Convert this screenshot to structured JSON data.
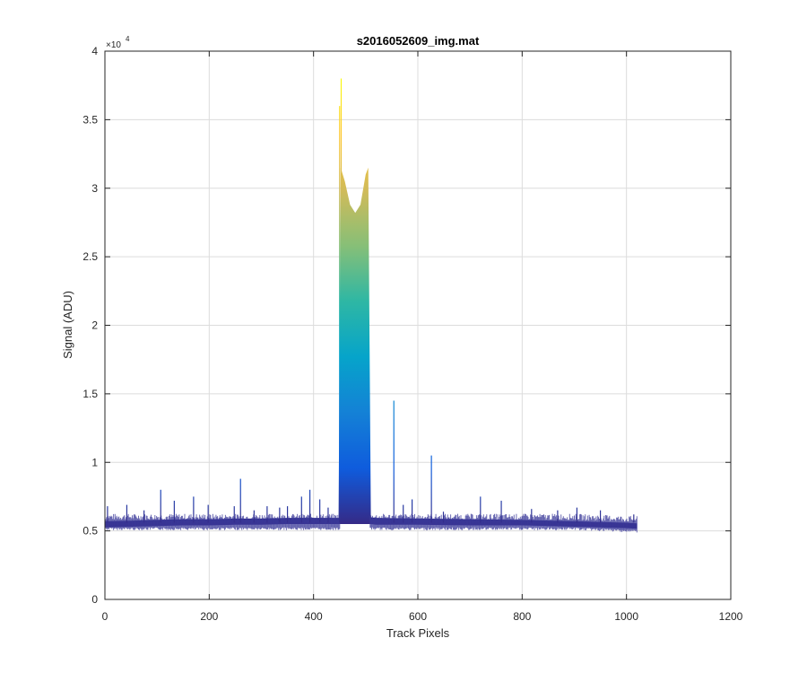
{
  "chart_data": {
    "type": "area",
    "title": "s2016052609_img.mat",
    "xlabel": "Track Pixels",
    "ylabel": "Signal (ADU)",
    "xlim": [
      0,
      1200
    ],
    "ylim": [
      0,
      40000
    ],
    "x_ticks": [
      0,
      200,
      400,
      600,
      800,
      1000,
      1200
    ],
    "x_tick_labels": [
      "0",
      "200",
      "400",
      "600",
      "800",
      "1000",
      "1200"
    ],
    "y_ticks": [
      0,
      5000,
      10000,
      15000,
      20000,
      25000,
      30000,
      35000,
      40000
    ],
    "y_tick_labels": [
      "0",
      "0.5",
      "1",
      "1.5",
      "2",
      "2.5",
      "3",
      "3.5",
      "4"
    ],
    "y_exponent_base": "×10",
    "y_exponent_power": "4",
    "grid": true,
    "colormap": "parula",
    "colormap_stops": [
      "#352a87",
      "#0f5cdd",
      "#1481d6",
      "#06a4ca",
      "#2eb7a4",
      "#87bf77",
      "#d1bb59",
      "#fec832",
      "#f9fb0e"
    ],
    "series": [
      {
        "x": [
          0,
          50,
          100,
          150,
          200,
          250,
          300,
          350,
          400,
          440,
          448,
          452,
          460,
          470,
          480,
          490,
          500,
          505,
          510,
          520,
          600,
          700,
          800,
          900,
          1000,
          1020
        ],
        "y_min": [
          5250,
          5300,
          5350,
          5400,
          5400,
          5450,
          5450,
          5500,
          5500,
          5500,
          5500,
          5500,
          5500,
          5500,
          5500,
          5500,
          5500,
          5500,
          5500,
          5450,
          5450,
          5400,
          5400,
          5300,
          5200,
          5150
        ],
        "y_max": [
          5700,
          5750,
          5800,
          5850,
          5850,
          5900,
          5900,
          5950,
          5950,
          5950,
          5950,
          31500,
          30500,
          28800,
          28200,
          28800,
          31000,
          31500,
          6000,
          5950,
          5900,
          5850,
          5800,
          5700,
          5600,
          5550
        ]
      }
    ],
    "spikes": [
      {
        "x": 5,
        "y": 6800
      },
      {
        "x": 42,
        "y": 6900
      },
      {
        "x": 75,
        "y": 6500
      },
      {
        "x": 107,
        "y": 8000
      },
      {
        "x": 133,
        "y": 7200
      },
      {
        "x": 170,
        "y": 7500
      },
      {
        "x": 198,
        "y": 6900
      },
      {
        "x": 248,
        "y": 6800
      },
      {
        "x": 260,
        "y": 8800
      },
      {
        "x": 286,
        "y": 6500
      },
      {
        "x": 311,
        "y": 6800
      },
      {
        "x": 335,
        "y": 6700
      },
      {
        "x": 350,
        "y": 6800
      },
      {
        "x": 377,
        "y": 7500
      },
      {
        "x": 393,
        "y": 8000
      },
      {
        "x": 412,
        "y": 7300
      },
      {
        "x": 428,
        "y": 6700
      },
      {
        "x": 450,
        "y": 36000
      },
      {
        "x": 453,
        "y": 38000
      },
      {
        "x": 554,
        "y": 14500
      },
      {
        "x": 572,
        "y": 6900
      },
      {
        "x": 589,
        "y": 7300
      },
      {
        "x": 626,
        "y": 10500
      },
      {
        "x": 649,
        "y": 6400
      },
      {
        "x": 720,
        "y": 7500
      },
      {
        "x": 760,
        "y": 7200
      },
      {
        "x": 818,
        "y": 6600
      },
      {
        "x": 868,
        "y": 6500
      },
      {
        "x": 905,
        "y": 6700
      },
      {
        "x": 950,
        "y": 6500
      },
      {
        "x": 1014,
        "y": 6200
      }
    ]
  }
}
